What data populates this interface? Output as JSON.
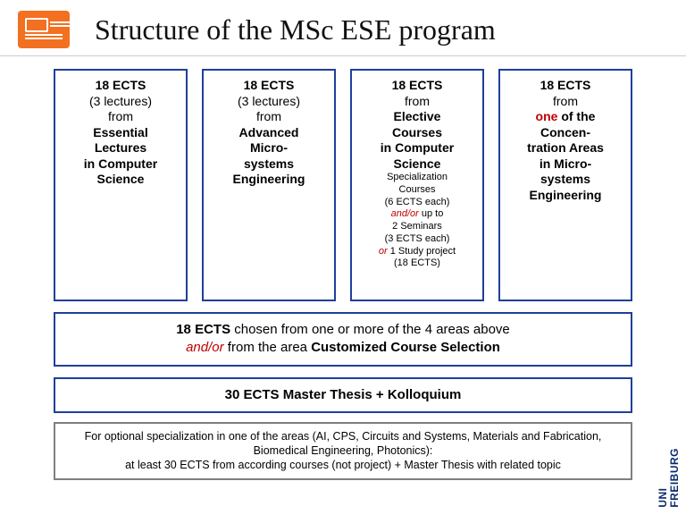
{
  "title": "Structure of the MSc ESE program",
  "colors": {
    "accent_orange": "#f37021",
    "box_border": "#1f3f9a",
    "grey_border": "#7f7f7f",
    "red_text": "#c00000",
    "uni_blue": "#0a2a6b"
  },
  "boxes": [
    {
      "ects": "18 ECTS",
      "sub1": "(3 lectures)",
      "sub2": "from",
      "bold1": "Essential",
      "bold2": "Lectures",
      "bold3": "in Computer",
      "bold4": "Science"
    },
    {
      "ects": "18 ECTS",
      "sub1": "(3 lectures)",
      "sub2": "from",
      "bold1": "Advanced",
      "bold2": "Micro-",
      "bold3": "systems",
      "bold4": "Engineering"
    },
    {
      "ects": "18 ECTS",
      "sub2": "from",
      "bold1": "Elective",
      "bold2": "Courses",
      "bold3": "in Computer",
      "bold4": "Science",
      "spec1": "Specialization",
      "spec2": "Courses",
      "spec3": "(6 ECTS each)",
      "spec4a": "and/or",
      "spec4b": " up to",
      "spec5": "2  Seminars",
      "spec6": "(3 ECTS each)",
      "spec7a": "or",
      "spec7b": " 1 Study project",
      "spec8": "(18 ECTS)"
    },
    {
      "ects": "18 ECTS",
      "sub2": "from",
      "red1": "one",
      "tail1": " of the",
      "bold1": "Concen-",
      "bold2": "tration Areas",
      "bold3": "in Micro-",
      "bold4": "systems",
      "bold5": "Engineering"
    }
  ],
  "wide1": {
    "b1": "18 ECTS",
    "t1": " chosen from one or more of the 4 areas above",
    "r1": "and/or",
    "t2": " from the area ",
    "b2": "Customized Course Selection"
  },
  "wide2": "30 ECTS  Master Thesis + Kolloquium",
  "grey": {
    "l1": "For optional specialization in one of the areas (AI, CPS, Circuits and Systems, Materials and Fabrication, Biomedical Engineering, Photonics):",
    "l2": "at least 30 ECTS from according courses (not project) + Master Thesis with related topic"
  },
  "uni": {
    "l1": "UNI",
    "l2": "FREIBURG"
  }
}
